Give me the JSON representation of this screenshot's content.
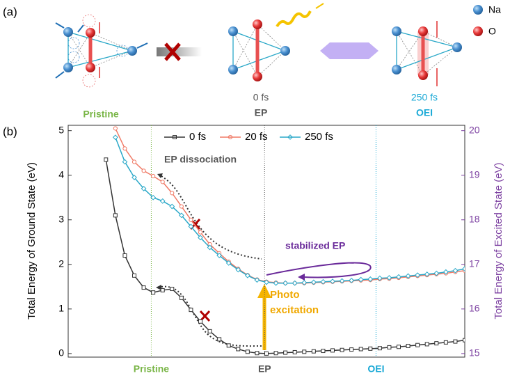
{
  "panel_a": {
    "label": "(a)",
    "legend": [
      "Na",
      "O"
    ],
    "states": [
      {
        "time": "0 fs",
        "name": "EP"
      },
      {
        "time": "250 fs",
        "name": "OEI"
      }
    ],
    "pristine": "Pristine"
  },
  "chart_data": {
    "type": "line",
    "panel_label": "(b)",
    "ylabel": "Total Energy of Ground State (eV)",
    "y2label": "Total Energy of Excited State (eV)",
    "ylim": [
      -0.08,
      5.12
    ],
    "yticks": [
      0,
      1,
      2,
      3,
      4,
      5
    ],
    "y2lim": [
      14.92,
      20.12
    ],
    "y2ticks": [
      15,
      16,
      17,
      18,
      19,
      20
    ],
    "xlim": [
      0,
      42
    ],
    "xticks": [
      {
        "value": 8.8,
        "label": "Pristine"
      },
      {
        "value": 20.8,
        "label": "EP"
      },
      {
        "value": 32.6,
        "label": "OEI"
      }
    ],
    "xtick_colors": [
      "#7ab648",
      "#555555",
      "#1aa9d6"
    ],
    "annotations": [
      "EP dissociation",
      "stabilized EP",
      "Photo",
      "excitation"
    ],
    "legend": "top",
    "x": [
      4,
      5,
      6,
      7,
      8,
      9,
      10,
      11,
      12,
      13,
      14,
      15,
      16,
      17,
      18,
      19,
      20,
      21,
      22,
      23,
      24,
      25,
      26,
      27,
      28,
      29,
      30,
      31,
      32,
      33,
      34,
      35,
      36,
      37,
      38,
      39,
      40,
      41,
      42
    ],
    "series": [
      {
        "name": "0 fs",
        "color": "#333333",
        "marker": "square",
        "axis": "y",
        "values": [
          4.35,
          3.1,
          2.2,
          1.75,
          1.48,
          1.37,
          1.42,
          1.45,
          1.25,
          0.98,
          0.72,
          0.5,
          0.32,
          0.18,
          0.1,
          0.04,
          0.01,
          0,
          0.01,
          0.02,
          0.03,
          0.04,
          0.05,
          0.06,
          0.07,
          0.08,
          0.09,
          0.1,
          0.11,
          0.12,
          0.14,
          0.15,
          0.17,
          0.19,
          0.21,
          0.23,
          0.25,
          0.27,
          0.3
        ]
      },
      {
        "name": "20 fs",
        "color": "#f07a66",
        "marker": "circle",
        "axis": "y2",
        "values": [
          null,
          20.05,
          19.6,
          19.3,
          19.1,
          18.98,
          18.85,
          18.6,
          18.3,
          18.0,
          17.72,
          17.45,
          17.25,
          17.06,
          16.9,
          16.76,
          16.66,
          16.61,
          16.59,
          16.58,
          16.58,
          16.58,
          16.59,
          16.6,
          16.61,
          16.62,
          16.63,
          16.64,
          16.65,
          16.67,
          16.68,
          16.7,
          16.72,
          16.74,
          16.76,
          16.78,
          16.8,
          16.83,
          16.86
        ]
      },
      {
        "name": "250 fs",
        "color": "#2aa8c8",
        "marker": "diamond",
        "axis": "y2",
        "values": [
          null,
          19.85,
          19.3,
          18.95,
          18.7,
          18.5,
          18.42,
          18.3,
          18.1,
          17.85,
          17.6,
          17.38,
          17.2,
          17.03,
          16.88,
          16.75,
          16.65,
          16.6,
          16.58,
          16.58,
          16.58,
          16.59,
          16.6,
          16.61,
          16.62,
          16.63,
          16.64,
          16.66,
          16.67,
          16.69,
          16.7,
          16.72,
          16.74,
          16.76,
          16.78,
          16.8,
          16.83,
          16.86,
          16.9
        ]
      }
    ]
  }
}
